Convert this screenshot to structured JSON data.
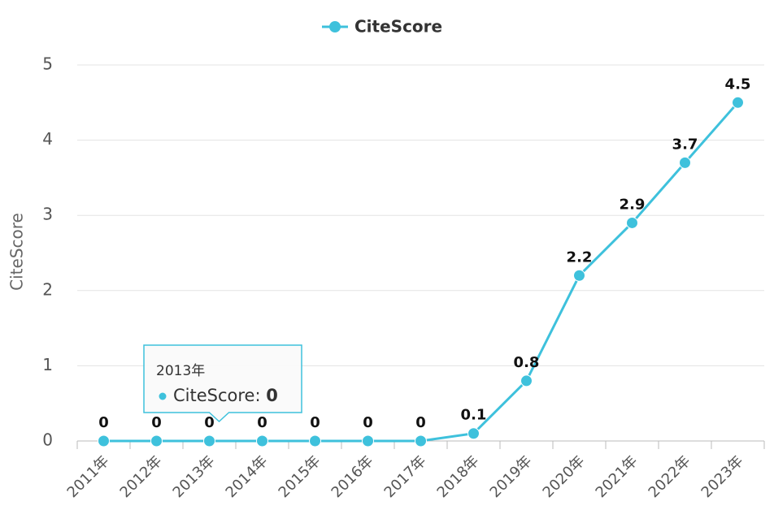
{
  "chart_data": {
    "type": "line",
    "legend": "top",
    "y_label": "CiteScore",
    "categories": [
      "2011年",
      "2012年",
      "2013年",
      "2014年",
      "2015年",
      "2016年",
      "2017年",
      "2018年",
      "2019年",
      "2020年",
      "2021年",
      "2022年",
      "2023年"
    ],
    "series": [
      {
        "name": "CiteScore",
        "color": "#3ec1dc",
        "values": [
          0,
          0,
          0,
          0,
          0,
          0,
          0,
          0.1,
          0.8,
          2.2,
          2.9,
          3.7,
          4.5
        ]
      }
    ],
    "ylim": [
      0,
      5
    ],
    "yticks": [
      0,
      1,
      2,
      3,
      4,
      5
    ],
    "grid": true,
    "tooltip_index": 2
  }
}
